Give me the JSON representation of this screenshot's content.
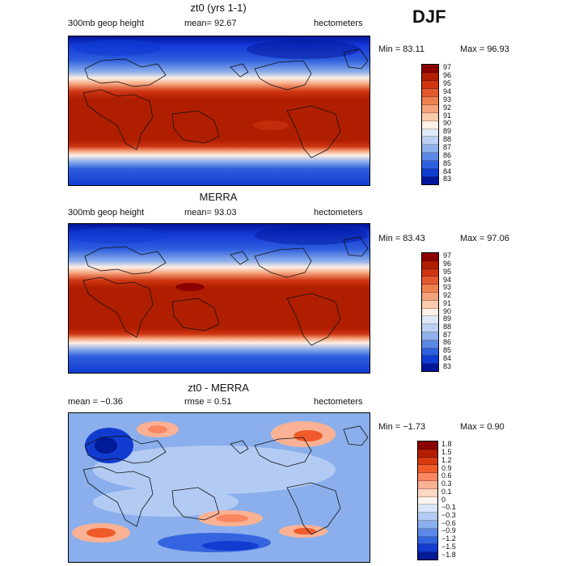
{
  "season": "DJF",
  "panels": [
    {
      "title": "zt0 (yrs 1-1)",
      "left_label": "300mb geop height",
      "mid_label": "mean=   92.67",
      "right_label": "hectometers",
      "min_label": "Min =  83.11",
      "max_label": "Max =   96.93",
      "color_levels": [
        "97",
        "96",
        "95",
        "94",
        "93",
        "92",
        "91",
        "90",
        "89",
        "88",
        "87",
        "86",
        "85",
        "84",
        "83"
      ],
      "colors": [
        "#8b0000",
        "#b01e00",
        "#cf3512",
        "#e35a2f",
        "#ee8150",
        "#f5a37c",
        "#fbccac",
        "#fdf0e6",
        "#dfe8f7",
        "#bcd0f2",
        "#8fb0ea",
        "#5d87e4",
        "#2f5fde",
        "#0f3bd0",
        "#00169a"
      ]
    },
    {
      "title": "MERRA",
      "left_label": "300mb geop height",
      "mid_label": "mean=   93.03",
      "right_label": "hectometers",
      "min_label": "Min =  83.43",
      "max_label": "Max =   97.06",
      "color_levels": [
        "97",
        "96",
        "95",
        "94",
        "93",
        "92",
        "91",
        "90",
        "89",
        "88",
        "87",
        "86",
        "85",
        "84",
        "83"
      ],
      "colors": [
        "#8b0000",
        "#b01e00",
        "#cf3512",
        "#e35a2f",
        "#ee8150",
        "#f5a37c",
        "#fbccac",
        "#fdf0e6",
        "#dfe8f7",
        "#bcd0f2",
        "#8fb0ea",
        "#5d87e4",
        "#2f5fde",
        "#0f3bd0",
        "#00169a"
      ]
    },
    {
      "title": "zt0 - MERRA",
      "left_label": "mean =   −0.36",
      "mid_label": "rmse =    0.51",
      "right_label": "hectometers",
      "min_label": "Min =  −1.73",
      "max_label": "Max =    0.90",
      "color_levels": [
        "1.8",
        "1.5",
        "1.2",
        "0.9",
        "0.6",
        "0.3",
        "0.1",
        "0",
        "−0.1",
        "−0.3",
        "−0.6",
        "−0.9",
        "−1.2",
        "−1.5",
        "−1.8"
      ],
      "colors": [
        "#8b0000",
        "#b31e00",
        "#d63a10",
        "#ef5b2a",
        "#f98661",
        "#fbb193",
        "#fdd6c4",
        "#fbf3ee",
        "#d9e5f8",
        "#b3cbf3",
        "#8aafec",
        "#5d8ae6",
        "#3564e0",
        "#123bd0",
        "#001b96"
      ]
    }
  ]
}
